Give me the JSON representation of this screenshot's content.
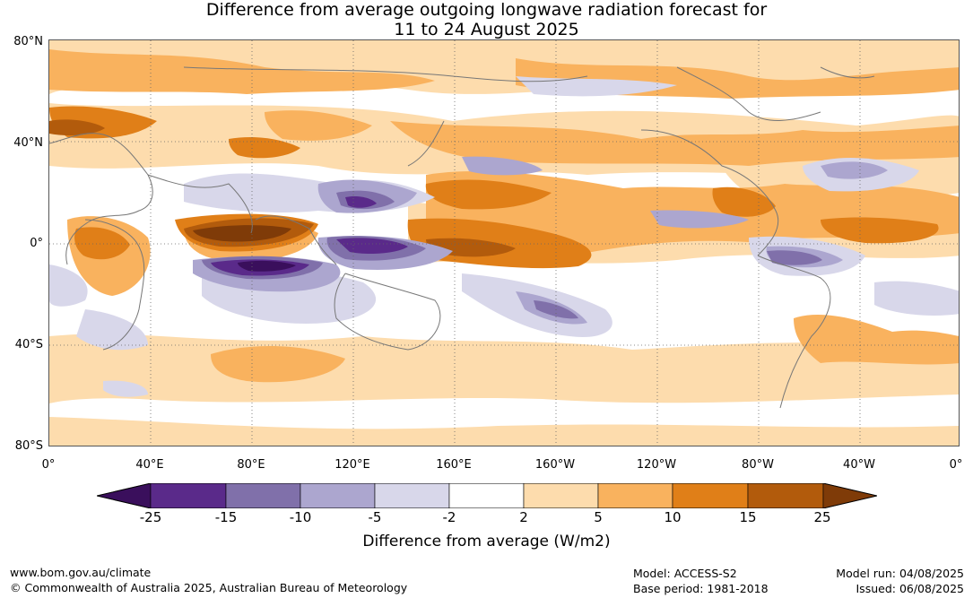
{
  "title_line1": "Difference from average outgoing longwave radiation forecast for",
  "title_line2": "11 to 24 August 2025",
  "lat_labels": [
    "80°N",
    "40°N",
    "0°",
    "40°S",
    "80°S"
  ],
  "lon_labels": [
    "0°",
    "40°E",
    "80°E",
    "120°E",
    "160°E",
    "160°W",
    "120°W",
    "80°W",
    "40°W",
    "0°"
  ],
  "colorbar": {
    "title": "Difference from average (W/m2)",
    "ticks": [
      "-25",
      "-15",
      "-10",
      "-5",
      "-2",
      "2",
      "5",
      "10",
      "15",
      "25"
    ],
    "colors": [
      "#3a0f5c",
      "#5a2a8a",
      "#8070aa",
      "#aca6cf",
      "#d8d7ea",
      "#ffffff",
      "#fddcad",
      "#f9b25e",
      "#e07f18",
      "#b25b0c",
      "#7f3b08"
    ]
  },
  "footer": {
    "website": "www.bom.gov.au/climate",
    "copyright": "© Commonwealth of Australia 2025, Australian Bureau of Meteorology",
    "model": "Model: ACCESS-S2",
    "base_period": "Base period: 1981-2018",
    "model_run": "Model run: 04/08/2025",
    "issued": "Issued: 06/08/2025"
  }
}
